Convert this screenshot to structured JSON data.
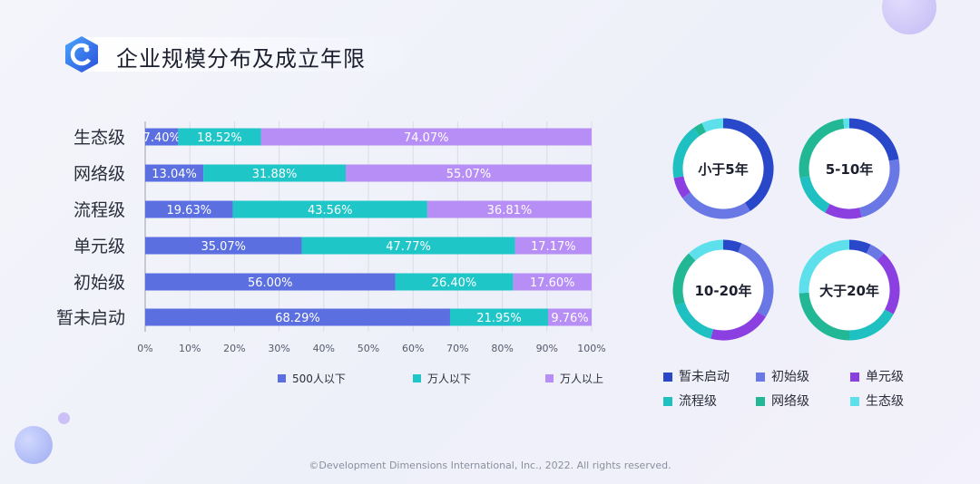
{
  "title": "企业规模分布及成立年限",
  "copyright": "©Development Dimensions International, Inc., 2022. All rights reserved.",
  "chart_data": [
    {
      "type": "bar",
      "orientation": "horizontal",
      "stacked": true,
      "categories": [
        "生态级",
        "网络级",
        "流程级",
        "单元级",
        "初始级",
        "暂未启动"
      ],
      "series": [
        {
          "name": "500人以下",
          "color": "#5b6fe0",
          "values": [
            7.4,
            13.04,
            19.63,
            35.07,
            56.0,
            68.29
          ]
        },
        {
          "name": "万人以下",
          "color": "#1ec6c8",
          "values": [
            18.52,
            31.88,
            43.56,
            47.77,
            26.4,
            21.95
          ]
        },
        {
          "name": "万人以上",
          "color": "#b78ef5",
          "values": [
            74.07,
            55.07,
            36.81,
            17.17,
            17.6,
            9.76
          ]
        }
      ],
      "xlim": [
        0,
        100
      ],
      "xticks": [
        "0%",
        "10%",
        "20%",
        "30%",
        "40%",
        "50%",
        "60%",
        "70%",
        "80%",
        "90%",
        "100%"
      ],
      "grid": true,
      "legend": "bottom"
    },
    {
      "type": "pie",
      "variant": "donut",
      "legend": [
        {
          "name": "暂未启动",
          "color": "#2947c9"
        },
        {
          "name": "初始级",
          "color": "#6a78e6"
        },
        {
          "name": "单元级",
          "color": "#8b3fe0"
        },
        {
          "name": "流程级",
          "color": "#1ec0c2"
        },
        {
          "name": "网络级",
          "color": "#22b896"
        },
        {
          "name": "生态级",
          "color": "#5ee0ec"
        }
      ],
      "charts": [
        {
          "label": "小于5年",
          "values": [
            41,
            24,
            7,
            18,
            3,
            7
          ]
        },
        {
          "label": "5-10年",
          "values": [
            22,
            24,
            12,
            14,
            26,
            2
          ]
        },
        {
          "label": "10-20年",
          "values": [
            6,
            28,
            20,
            16,
            18,
            12
          ]
        },
        {
          "label": "大于20年",
          "values": [
            7,
            5,
            21,
            17,
            24,
            26
          ]
        }
      ]
    }
  ]
}
